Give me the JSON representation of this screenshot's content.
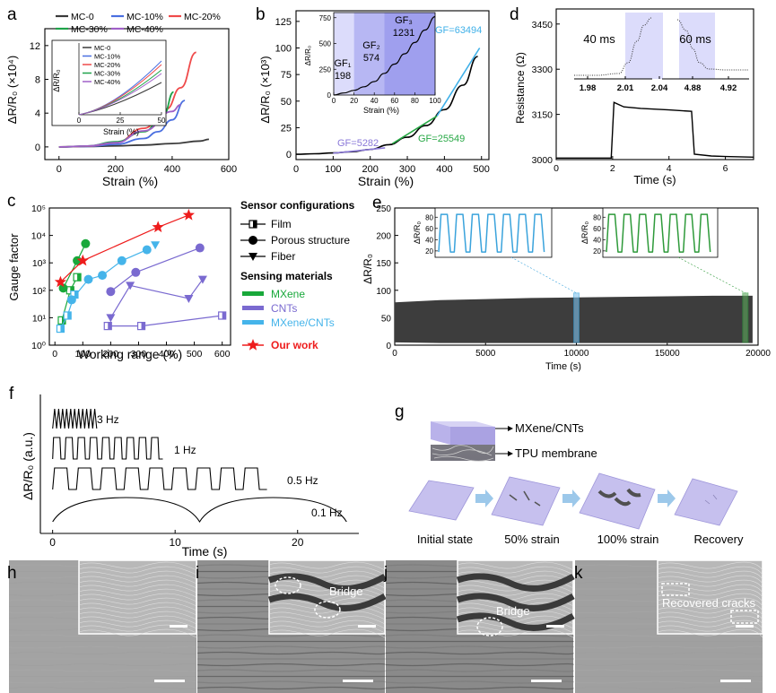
{
  "panels": {
    "a": {
      "label": "a",
      "chart_data": {
        "type": "line",
        "xlabel": "Strain (%)",
        "ylabel": "ΔR/R₀ (×10⁴)",
        "xlim": [
          -50,
          600
        ],
        "ylim": [
          -1.5,
          14
        ],
        "xticks": [
          0,
          200,
          400,
          600
        ],
        "yticks": [
          0,
          4,
          8,
          12
        ],
        "series": [
          {
            "name": "MC-0",
            "color": "#3a3a3a",
            "x": [
              0,
              100,
              200,
              300,
              400,
              500,
              530
            ],
            "y": [
              0,
              0.05,
              0.12,
              0.22,
              0.4,
              0.7,
              0.9
            ]
          },
          {
            "name": "MC-10%",
            "color": "#4a6fe0",
            "x": [
              0,
              100,
              200,
              300,
              350,
              400,
              445
            ],
            "y": [
              0,
              0.05,
              0.3,
              1.0,
              1.8,
              3.2,
              5.5
            ]
          },
          {
            "name": "MC-20%",
            "color": "#ef4a4a",
            "x": [
              0,
              100,
              200,
              300,
              380,
              430,
              485
            ],
            "y": [
              0,
              0.08,
              0.5,
              2.2,
              4.5,
              7.0,
              11.2
            ]
          },
          {
            "name": "MC-30%",
            "color": "#1fa34a",
            "x": [
              0,
              100,
              200,
              300,
              370,
              405
            ],
            "y": [
              0,
              0.1,
              0.6,
              1.8,
              3.8,
              6.5
            ]
          },
          {
            "name": "MC-40%",
            "color": "#a060c8",
            "x": [
              0,
              100,
              200,
              300,
              400,
              430
            ],
            "y": [
              0,
              0.1,
              0.5,
              1.9,
              4.2,
              5.0
            ]
          }
        ],
        "inset": {
          "xlabel": "Strain (%)",
          "ylabel": "ΔR/R₀",
          "xlim": [
            0,
            50
          ],
          "xticks": [
            0,
            25,
            50
          ],
          "legend": [
            "MC-0",
            "MC-10%",
            "MC-20%",
            "MC-30%",
            "MC-40%"
          ]
        }
      }
    },
    "b": {
      "label": "b",
      "chart_data": {
        "type": "line",
        "xlabel": "Strain (%)",
        "ylabel": "ΔR/R₀ (×10³)",
        "xlim": [
          0,
          520
        ],
        "ylim": [
          -5,
          135
        ],
        "xticks": [
          0,
          100,
          200,
          300,
          400,
          500
        ],
        "yticks": [
          0,
          25,
          50,
          75,
          100,
          125
        ],
        "x": [
          0,
          50,
          100,
          150,
          200,
          250,
          300,
          350,
          400,
          450,
          490
        ],
        "y": [
          0,
          0.5,
          1.2,
          2.3,
          4.5,
          9,
          16,
          27,
          42,
          65,
          92
        ],
        "annotations": [
          "GF=5282",
          "GF=25549",
          "GF=63494"
        ],
        "annotation_colors": [
          "#8a78d8",
          "#27a845",
          "#3fb0e8"
        ],
        "inset": {
          "xlabel": "Strain (%)",
          "ylabel": "ΔR/R₀",
          "xlim": [
            0,
            100
          ],
          "ylim": [
            0,
            800
          ],
          "xticks": [
            0,
            20,
            40,
            60,
            80,
            100
          ],
          "yticks": [
            0,
            250,
            500,
            750
          ],
          "regions": [
            {
              "name": "GF₁",
              "value": "198",
              "from": 0,
              "to": 20
            },
            {
              "name": "GF₂",
              "value": "574",
              "from": 20,
              "to": 50
            },
            {
              "name": "GF₃",
              "value": "1231",
              "from": 50,
              "to": 100
            }
          ],
          "x": [
            0,
            10,
            20,
            30,
            40,
            50,
            60,
            70,
            80,
            90,
            100
          ],
          "y": [
            0,
            20,
            45,
            80,
            130,
            210,
            300,
            400,
            510,
            630,
            760
          ]
        }
      }
    },
    "c": {
      "label": "c",
      "chart_data": {
        "type": "scatter",
        "xlabel": "Working range (%)",
        "ylabel": "Gauge factor",
        "xscale": "linear",
        "yscale": "log",
        "xlim": [
          -20,
          630
        ],
        "ylim": [
          1,
          100000
        ],
        "xticks": [
          0,
          100,
          200,
          300,
          400,
          500,
          600
        ],
        "yticks": [
          "10⁰",
          "10¹",
          "10²",
          "10³",
          "10⁴",
          "10⁵"
        ],
        "series": [
          {
            "name": "Film",
            "material": "MXene",
            "x": [
              25,
              55,
              80
            ],
            "y": [
              8,
              100,
              300
            ]
          },
          {
            "name": "Porous structure",
            "material": "MXene",
            "x": [
              30,
              80,
              110
            ],
            "y": [
              120,
              1200,
              5000
            ]
          },
          {
            "name": "Film",
            "material": "CNTs",
            "x": [
              190,
              310,
              600
            ],
            "y": [
              5,
              5,
              12
            ]
          },
          {
            "name": "Fiber",
            "material": "CNTs",
            "x": [
              200,
              270,
              480,
              530
            ],
            "y": [
              10,
              150,
              50,
              250
            ]
          },
          {
            "name": "Porous structure",
            "material": "CNTs",
            "x": [
              200,
              290,
              520
            ],
            "y": [
              90,
              450,
              3500
            ]
          },
          {
            "name": "Film",
            "material": "MXene/CNTs",
            "x": [
              20,
              45,
              70
            ],
            "y": [
              4,
              12,
              70
            ]
          },
          {
            "name": "Porous structure",
            "material": "MXene/CNTs",
            "x": [
              60,
              120,
              170,
              240,
              330
            ],
            "y": [
              45,
              250,
              350,
              1200,
              3000
            ]
          },
          {
            "name": "Fiber",
            "material": "MXene/CNTs",
            "x": [
              360
            ],
            "y": [
              4500
            ]
          },
          {
            "name": "Our work",
            "material": "Our work",
            "x": [
              20,
              100,
              370,
              480
            ],
            "y": [
              200,
              1200,
              20000,
              55000
            ]
          }
        ],
        "legend": {
          "configurations_title": "Sensor configurations",
          "configurations": [
            "Film",
            "Porous structure",
            "Fiber"
          ],
          "materials_title": "Sensing materials",
          "materials": [
            {
              "name": "MXene",
              "color": "#18a83a"
            },
            {
              "name": "CNTs",
              "color": "#7a6ad0"
            },
            {
              "name": "MXene/CNTs",
              "color": "#45b4ea"
            }
          ],
          "ours": {
            "name": "Our work",
            "color": "#ee1c1c"
          }
        }
      }
    },
    "d": {
      "label": "d",
      "chart_data": {
        "type": "line",
        "xlabel": "Time (s)",
        "ylabel": "Resistance (Ω)",
        "xlim": [
          0,
          7
        ],
        "ylim": [
          3000,
          3500
        ],
        "xticks": [
          0,
          2,
          4,
          6
        ],
        "yticks": [
          3000,
          3150,
          3300,
          3450
        ],
        "x": [
          0,
          1.95,
          2.05,
          2.4,
          3.0,
          4.0,
          4.8,
          4.9,
          5.5,
          6.0,
          7.0
        ],
        "y": [
          3005,
          3005,
          3190,
          3175,
          3170,
          3165,
          3160,
          3018,
          3012,
          3010,
          3008
        ],
        "inset_left": {
          "annotation": "40 ms",
          "xticks": [
            "1.98",
            "2.01",
            "2.04"
          ]
        },
        "inset_right": {
          "annotation": "60 ms",
          "xticks": [
            "4.88",
            "4.92"
          ]
        }
      }
    },
    "e": {
      "label": "e",
      "chart_data": {
        "type": "line",
        "xlabel": "Time (s)",
        "ylabel": "ΔR/R₀",
        "xlim": [
          0,
          20000
        ],
        "ylim": [
          0,
          250
        ],
        "xticks": [
          0,
          5000,
          10000,
          15000,
          20000
        ],
        "yticks": [
          0,
          50,
          100,
          150,
          200,
          250
        ],
        "x": [
          0,
          2500,
          5000,
          7500,
          10000,
          12500,
          15000,
          17500,
          19700
        ],
        "envelope_low": [
          5,
          4,
          4,
          4,
          4,
          4,
          4,
          4,
          4
        ],
        "envelope_high": [
          78,
          82,
          84,
          86,
          87,
          88,
          89,
          90,
          90
        ],
        "inset_left": {
          "ylabel": "ΔR/R₀",
          "yticks": [
            20,
            40,
            60,
            80
          ],
          "cycles": 7,
          "color": "#3aa3dc"
        },
        "inset_right": {
          "ylabel": "ΔR/R₀",
          "yticks": [
            20,
            40,
            60,
            80
          ],
          "cycles": 7,
          "color": "#2e9a3a"
        }
      }
    },
    "f": {
      "label": "f",
      "chart_data": {
        "type": "line",
        "xlabel": "Time (s)",
        "ylabel": "ΔR/R₀ (a.u.)",
        "xlim": [
          -1,
          25
        ],
        "xticks": [
          0,
          10,
          20
        ],
        "series": [
          {
            "name": "3 Hz",
            "frequency": 3,
            "duration": 3.6
          },
          {
            "name": "1 Hz",
            "frequency": 1,
            "duration": 9
          },
          {
            "name": "0.5 Hz",
            "frequency": 0.5,
            "duration": 17.5
          },
          {
            "name": "0.1 Hz",
            "frequency": 0.1,
            "duration": 24
          }
        ]
      }
    },
    "g": {
      "label": "g",
      "layer_top": "MXene/CNTs",
      "layer_bottom": "TPU membrane",
      "stages": [
        "Initial state",
        "50% strain",
        "100% strain",
        "Recovery"
      ]
    },
    "h": {
      "label": "h"
    },
    "i": {
      "label": "i",
      "annotation": "Bridge"
    },
    "j": {
      "label": "j",
      "annotation": "Bridge"
    },
    "k": {
      "label": "k",
      "annotation": "Recovered cracks"
    }
  }
}
